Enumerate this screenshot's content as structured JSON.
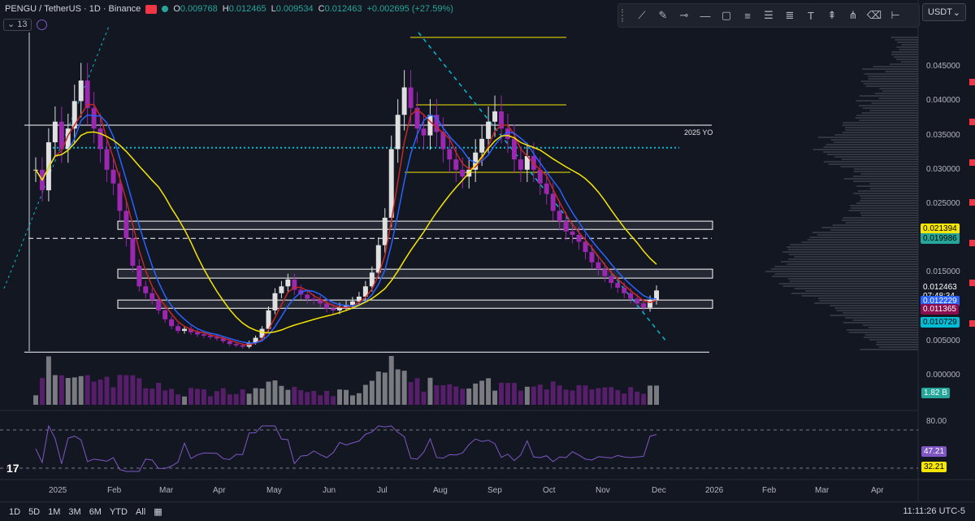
{
  "header": {
    "symbol": "PENGU / TetherUS · 1D · Binance",
    "open_label": "O",
    "open": "0.009768",
    "high_label": "H",
    "high": "0.012465",
    "low_label": "L",
    "low": "0.009534",
    "close_label": "C",
    "close": "0.012463",
    "change": "+0.002695 (+27.59%)"
  },
  "indicators": {
    "count": "13"
  },
  "currency": {
    "label": "USDT"
  },
  "price_axis": {
    "ticks": [
      "0.045000",
      "0.040000",
      "0.035000",
      "0.030000",
      "0.025000",
      "0.015000",
      "0.005000",
      "0.000000"
    ],
    "ticks_y": [
      0.045,
      0.04,
      0.035,
      0.03,
      0.025,
      0.015,
      0.005,
      0.0
    ]
  },
  "price_labels": [
    {
      "value": "0.021394",
      "color": "#f7e600",
      "text_color": "#000000",
      "price": 0.021394
    },
    {
      "value": "0.019986",
      "color": "#26a69a",
      "text_color": "#000000",
      "price": 0.019986
    },
    {
      "value": "0.012463",
      "color": "#131722",
      "text_color": "#ffffff",
      "price": 0.012863
    },
    {
      "value": "07:48:34",
      "color": "#131722",
      "text_color": "#ffffff",
      "price": 0.011663
    },
    {
      "value": "0.012229",
      "color": "#2962ff",
      "text_color": "#ffffff",
      "price": 0.010929
    },
    {
      "value": "0.011365",
      "color": "#880e4f",
      "text_color": "#ffffff",
      "price": 0.009665
    },
    {
      "value": "0.010729",
      "color": "#00bcd4",
      "text_color": "#000000",
      "price": 0.007829
    }
  ],
  "volume_label": "1.82 B",
  "rsi": {
    "ticks": [
      "80.00"
    ],
    "labels": [
      {
        "value": "47.21",
        "color": "#7e57c2",
        "text_color": "#ffffff"
      },
      {
        "value": "32.21",
        "color": "#f7e600",
        "text_color": "#000000"
      }
    ]
  },
  "annotation": {
    "yo_label": "2025 YO"
  },
  "time_axis": {
    "ticks": [
      "2025",
      "Feb",
      "Mar",
      "Apr",
      "May",
      "Jun",
      "Jul",
      "Aug",
      "Sep",
      "Oct",
      "Nov",
      "Dec",
      "2026",
      "Feb",
      "Mar",
      "Apr"
    ]
  },
  "bottom": {
    "ranges": [
      "1D",
      "5D",
      "1M",
      "3M",
      "6M",
      "YTD",
      "All"
    ],
    "clock": "11:11:26 UTC-5"
  },
  "colors": {
    "up": "#e0e0e0",
    "down": "#9c27b0",
    "ema_fast": "#2962ff",
    "ema_mid": "#c62828",
    "sma200": "#f7e600",
    "sma_green": "#4caf50",
    "rsi": "#7e57c2",
    "rsi_ma": "#f7e600",
    "level": "#ffffff",
    "zone": "#ffffff",
    "cyan": "#00bcd4"
  },
  "chart_data": {
    "type": "candlestick",
    "price_levels": [
      0.0365,
      0.0332,
      0.02,
      0.0034
    ],
    "zones": [
      [
        0.0213,
        0.0225
      ],
      [
        0.0142,
        0.0155
      ],
      [
        0.0098,
        0.011
      ]
    ],
    "closes": [
      0.03,
      0.027,
      0.034,
      0.037,
      0.033,
      0.036,
      0.04,
      0.043,
      0.039,
      0.036,
      0.033,
      0.03,
      0.028,
      0.024,
      0.02,
      0.016,
      0.013,
      0.012,
      0.011,
      0.0095,
      0.0082,
      0.0072,
      0.0065,
      0.0068,
      0.0063,
      0.006,
      0.0058,
      0.0056,
      0.0054,
      0.005,
      0.0046,
      0.0044,
      0.0042,
      0.0048,
      0.0055,
      0.0068,
      0.0095,
      0.012,
      0.013,
      0.014,
      0.0125,
      0.0118,
      0.0112,
      0.011,
      0.0105,
      0.0098,
      0.0095,
      0.01,
      0.0103,
      0.0108,
      0.0115,
      0.013,
      0.015,
      0.019,
      0.023,
      0.033,
      0.038,
      0.042,
      0.039,
      0.036,
      0.035,
      0.038,
      0.0355,
      0.033,
      0.0315,
      0.03,
      0.029,
      0.03,
      0.0325,
      0.0345,
      0.037,
      0.0385,
      0.036,
      0.0345,
      0.0315,
      0.03,
      0.032,
      0.03,
      0.028,
      0.0265,
      0.024,
      0.0225,
      0.021,
      0.0205,
      0.0195,
      0.018,
      0.0165,
      0.0155,
      0.0145,
      0.0135,
      0.0128,
      0.012,
      0.0112,
      0.0105,
      0.0099,
      0.011,
      0.0124
    ]
  }
}
